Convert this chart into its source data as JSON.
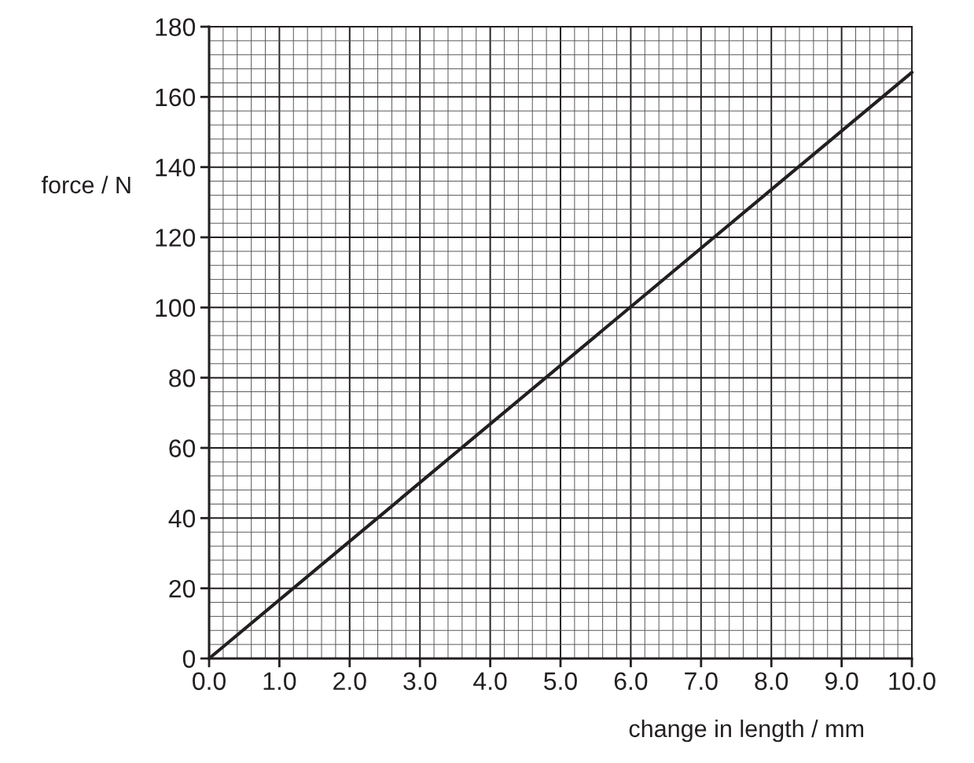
{
  "chart_data": {
    "type": "line",
    "xlabel": "change in length / mm",
    "ylabel": "force / N",
    "series": [
      {
        "color": "#231f20",
        "x": [
          0,
          10
        ],
        "values": [
          0,
          167
        ]
      }
    ],
    "xlim": [
      0,
      10
    ],
    "ylim": [
      0,
      180
    ],
    "xticks": [
      {
        "value": 0,
        "label": "0.0"
      },
      {
        "value": 1,
        "label": "1.0"
      },
      {
        "value": 2,
        "label": "2.0"
      },
      {
        "value": 3,
        "label": "3.0"
      },
      {
        "value": 4,
        "label": "4.0"
      },
      {
        "value": 5,
        "label": "5.0"
      },
      {
        "value": 6,
        "label": "6.0"
      },
      {
        "value": 7,
        "label": "7.0"
      },
      {
        "value": 8,
        "label": "8.0"
      },
      {
        "value": 9,
        "label": "9.0"
      },
      {
        "value": 10,
        "label": "10.0"
      }
    ],
    "yticks": [
      0,
      20,
      40,
      60,
      80,
      100,
      120,
      140,
      160,
      180
    ],
    "grid": true
  }
}
